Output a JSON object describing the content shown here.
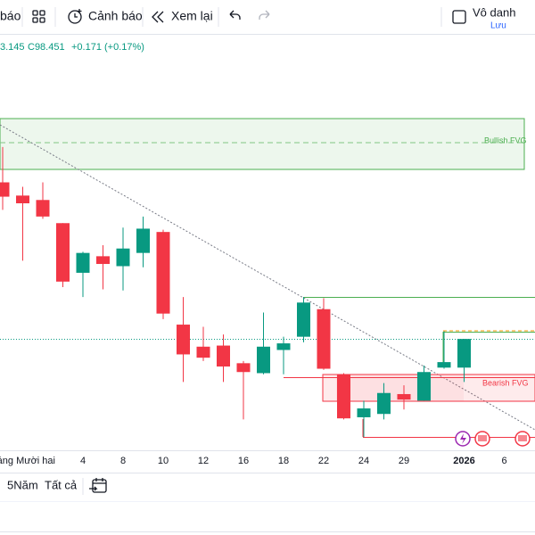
{
  "toolbar": {
    "cut_label": "báo",
    "alerts": "Cảnh báo",
    "replay": "Xem lại",
    "layout_name": "Vô danh",
    "save": "Lưu"
  },
  "legend": {
    "low_cut": "3.145",
    "close": "C98.451",
    "change": "+0.171 (+0.17%)"
  },
  "chart_data": {
    "type": "candlestick",
    "categories": [
      null,
      null,
      "tháng Mười hai",
      null,
      "4",
      null,
      "8",
      null,
      "10",
      null,
      "12",
      null,
      "16",
      null,
      "18",
      null,
      "22",
      null,
      "24",
      null,
      "29",
      null,
      null,
      "2026",
      null,
      "6"
    ],
    "open": [
      99.87,
      99.75,
      99.71,
      99.5,
      99.05,
      99.2,
      99.11,
      99.23,
      99.42,
      98.58,
      98.38,
      98.39,
      98.23,
      98.14,
      98.35,
      98.47,
      98.72,
      98.13,
      97.74,
      97.77,
      97.95,
      97.89,
      98.19,
      98.19,
      null,
      null
    ],
    "high": [
      100.19,
      99.83,
      99.87,
      99.5,
      99.24,
      99.3,
      99.46,
      99.56,
      99.44,
      98.83,
      98.56,
      98.49,
      98.25,
      98.69,
      98.47,
      98.83,
      98.82,
      98.14,
      97.89,
      98.05,
      98.03,
      98.21,
      98.52,
      98.45,
      null,
      null
    ],
    "low": [
      99.62,
      99.16,
      99.54,
      98.92,
      98.83,
      98.9,
      98.89,
      99.1,
      98.63,
      98.06,
      98.25,
      98.06,
      97.72,
      98.13,
      98.13,
      98.42,
      98.17,
      97.72,
      97.56,
      97.72,
      97.81,
      97.89,
      98.18,
      98.06,
      null,
      null
    ],
    "close": [
      99.74,
      99.68,
      99.56,
      98.97,
      99.23,
      99.13,
      99.27,
      99.45,
      98.68,
      98.31,
      98.28,
      98.2,
      98.15,
      98.38,
      98.41,
      98.78,
      98.18,
      97.73,
      97.82,
      97.96,
      97.9,
      98.15,
      98.24,
      98.45,
      null,
      null
    ],
    "up_color": "#089981",
    "down_color": "#f23645",
    "ylim": [
      97.4,
      101.2
    ],
    "annotations": {
      "bullish": "Bullish FVG",
      "bearish": "Bearish FVG"
    }
  },
  "bottom_bar": {
    "range_5y": "5Năm",
    "range_all": "Tất cả"
  }
}
